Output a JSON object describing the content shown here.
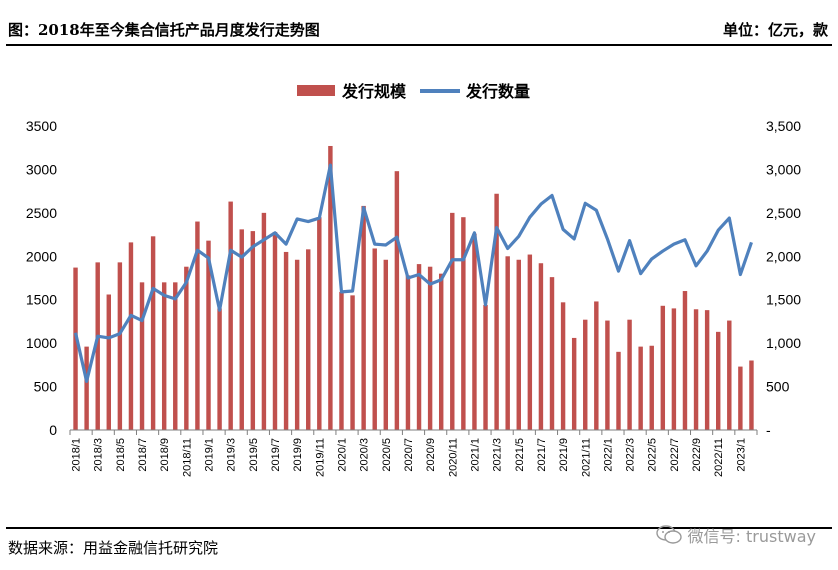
{
  "header": {
    "title": "图：2018年至今集合信托产品月度发行走势图",
    "unit": "单位：亿元，款"
  },
  "footer": {
    "source": "数据来源：用益金融信托研究院",
    "watermark": "微信号: trustway"
  },
  "colors": {
    "bar": "#C0504D",
    "line": "#4F81BD",
    "axis": "#7f7f7f"
  },
  "chart_data": {
    "type": "bar",
    "title": "",
    "left_ticks": [
      "0",
      "500",
      "1000",
      "1500",
      "2000",
      "2500",
      "3000",
      "3500"
    ],
    "right_ticks": [
      "-",
      "500",
      "1,000",
      "1,500",
      "2,000",
      "2,500",
      "3,000",
      "3,500"
    ],
    "ylim": [
      0,
      3500
    ],
    "x_tick_labels": [
      "2018/1",
      "2018/3",
      "2018/5",
      "2018/7",
      "2018/9",
      "2018/11",
      "2019/1",
      "2019/3",
      "2019/5",
      "2019/7",
      "2019/9",
      "2019/11",
      "2020/1",
      "2020/3",
      "2020/5",
      "2020/7",
      "2020/9",
      "2020/11",
      "2021/1",
      "2021/3",
      "2021/5",
      "2021/7",
      "2021/9",
      "2021/11",
      "2022/1",
      "2022/3",
      "2022/5",
      "2022/7",
      "2022/9",
      "2022/11",
      "2023/1"
    ],
    "categories": [
      "2018/1",
      "2018/2",
      "2018/3",
      "2018/4",
      "2018/5",
      "2018/6",
      "2018/7",
      "2018/8",
      "2018/9",
      "2018/10",
      "2018/11",
      "2018/12",
      "2019/1",
      "2019/2",
      "2019/3",
      "2019/4",
      "2019/5",
      "2019/6",
      "2019/7",
      "2019/8",
      "2019/9",
      "2019/10",
      "2019/11",
      "2019/12",
      "2020/1",
      "2020/2",
      "2020/3",
      "2020/4",
      "2020/5",
      "2020/6",
      "2020/7",
      "2020/8",
      "2020/9",
      "2020/10",
      "2020/11",
      "2020/12",
      "2021/1",
      "2021/2",
      "2021/3",
      "2021/4",
      "2021/5",
      "2021/6",
      "2021/7",
      "2021/8",
      "2021/9",
      "2021/10",
      "2021/11",
      "2021/12",
      "2022/1",
      "2022/2",
      "2022/3",
      "2022/4",
      "2022/5",
      "2022/6",
      "2022/7",
      "2022/8",
      "2022/9",
      "2022/10",
      "2022/11",
      "2022/12",
      "2023/1",
      "2023/2"
    ],
    "series": [
      {
        "name": "发行规模",
        "type": "bar",
        "axis": "left",
        "values": [
          1870,
          960,
          1930,
          1560,
          1930,
          2160,
          1700,
          2230,
          1700,
          1700,
          1880,
          2400,
          2180,
          1400,
          2630,
          2310,
          2290,
          2500,
          2280,
          2050,
          1960,
          2080,
          2450,
          3270,
          1590,
          1550,
          2580,
          2090,
          1960,
          2980,
          1780,
          1910,
          1880,
          1800,
          2500,
          2450,
          2260,
          1440,
          2720,
          2000,
          1960,
          2020,
          1920,
          1760,
          1470,
          1060,
          1270,
          1480,
          1260,
          900,
          1270,
          960,
          970,
          1430,
          1400,
          1600,
          1390,
          1380,
          1130,
          1260,
          730,
          800
        ]
      },
      {
        "name": "发行数量",
        "type": "line",
        "axis": "right",
        "values": [
          1120,
          560,
          1080,
          1060,
          1110,
          1320,
          1260,
          1630,
          1550,
          1510,
          1700,
          2070,
          1980,
          1380,
          2070,
          1990,
          2110,
          2190,
          2270,
          2140,
          2430,
          2400,
          2440,
          3050,
          1590,
          1600,
          2560,
          2140,
          2130,
          2220,
          1750,
          1790,
          1680,
          1730,
          1960,
          1960,
          2270,
          1440,
          2330,
          2090,
          2230,
          2450,
          2600,
          2700,
          2310,
          2200,
          2610,
          2530,
          2200,
          1830,
          2180,
          1800,
          1970,
          2060,
          2140,
          2190,
          1890,
          2060,
          2300,
          2440,
          1790,
          2160
        ]
      }
    ],
    "legend_position": "top-center",
    "grid": false
  }
}
